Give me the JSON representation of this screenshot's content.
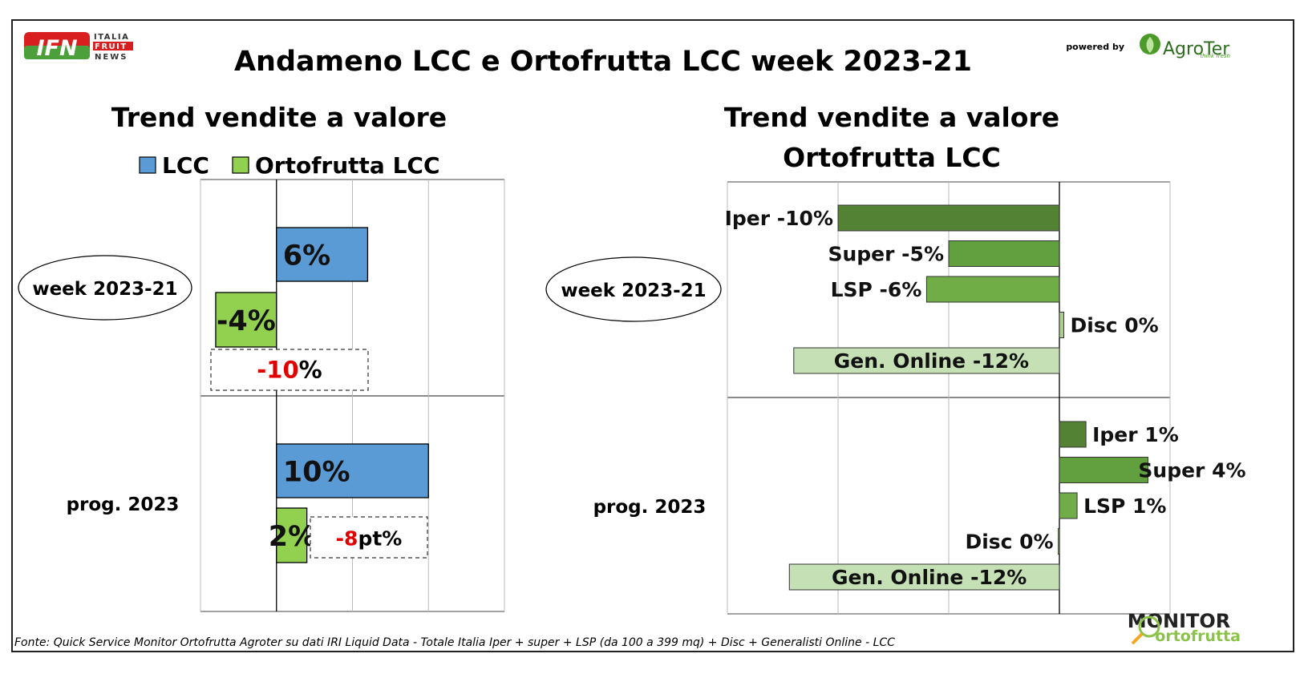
{
  "header": {
    "title": "Andameno LCC e Ortofrutta LCC week 2023-21",
    "logo_left": {
      "mark": "IFN",
      "line1": "ITALIA",
      "line2": "FRUIT",
      "line3": "NEWS"
    },
    "powered_by": "powered by",
    "logo_right": {
      "name": "AgroTer",
      "tagline": "think fresh"
    }
  },
  "footer": {
    "source": "Fonte: Quick Service Monitor Ortofrutta Agroter su dati IRI Liquid Data - Totale Italia Iper + super + LSP (da 100 a 399 mq) + Disc + Generalisti Online - LCC",
    "logo": {
      "line1": "MONITOR",
      "line2": "ortofrutta"
    }
  },
  "colors": {
    "lcc": "#5B9BD5",
    "ortofrutta": "#92D050",
    "iper": "#548235",
    "super": "#629F3E",
    "lsp": "#70AD47",
    "disc": "#A9D08E",
    "online": "#C5E0B4",
    "negative": "#E00000"
  },
  "chart_data": [
    {
      "type": "bar",
      "orientation": "horizontal",
      "title": "Trend vendite a valore",
      "legend": {
        "placement": "top",
        "entries": [
          "LCC",
          "Ortofrutta LCC"
        ]
      },
      "categories": [
        "week 2023-21",
        "prog. 2023"
      ],
      "series": [
        {
          "name": "LCC",
          "values": [
            6,
            10
          ],
          "labels": [
            "6%",
            "10%"
          ]
        },
        {
          "name": "Ortofrutta LCC",
          "values": [
            -4,
            2
          ],
          "labels": [
            "-4%",
            "2%"
          ]
        }
      ],
      "annotations": [
        {
          "category": "week 2023-21",
          "num": "-10",
          "unit": "%"
        },
        {
          "category": "prog. 2023",
          "num": "-8",
          "unit": "pt%"
        }
      ],
      "xlim": [
        -5,
        15
      ],
      "grid": true
    },
    {
      "type": "bar",
      "orientation": "horizontal",
      "title": "Trend vendite a valore",
      "subtitle": "Ortofrutta LCC",
      "categories": [
        "week 2023-21",
        "prog. 2023"
      ],
      "channels": [
        "Iper",
        "Super",
        "LSP",
        "Disc",
        "Gen. Online"
      ],
      "groups": [
        {
          "category": "week 2023-21",
          "values": [
            -10,
            -5,
            -6,
            0.2,
            -12
          ],
          "labels": [
            "Iper -10%",
            "Super -5%",
            "LSP -6%",
            "Disc 0%",
            "Gen. Online -12%"
          ]
        },
        {
          "category": "prog. 2023",
          "values": [
            1.2,
            4,
            0.8,
            -0.05,
            -12.2
          ],
          "labels": [
            "Iper 1%",
            "Super 4%",
            "LSP 1%",
            "Disc 0%",
            "Gen. Online -12%"
          ]
        }
      ],
      "xlim": [
        -15,
        5
      ],
      "grid": true
    }
  ]
}
